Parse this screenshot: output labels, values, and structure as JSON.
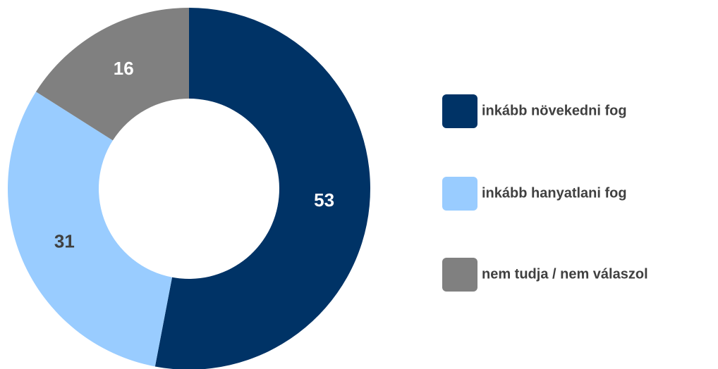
{
  "chart_data": {
    "type": "donut",
    "categories": [
      "inkább növekedni fog",
      "inkább hanyatlani fog",
      "nem tudja / nem válaszol"
    ],
    "values": [
      53,
      31,
      16
    ],
    "colors": [
      "#003366",
      "#99ccff",
      "#808080"
    ],
    "label_colors": [
      "#ffffff",
      "#404040",
      "#ffffff"
    ],
    "legend": "right"
  }
}
